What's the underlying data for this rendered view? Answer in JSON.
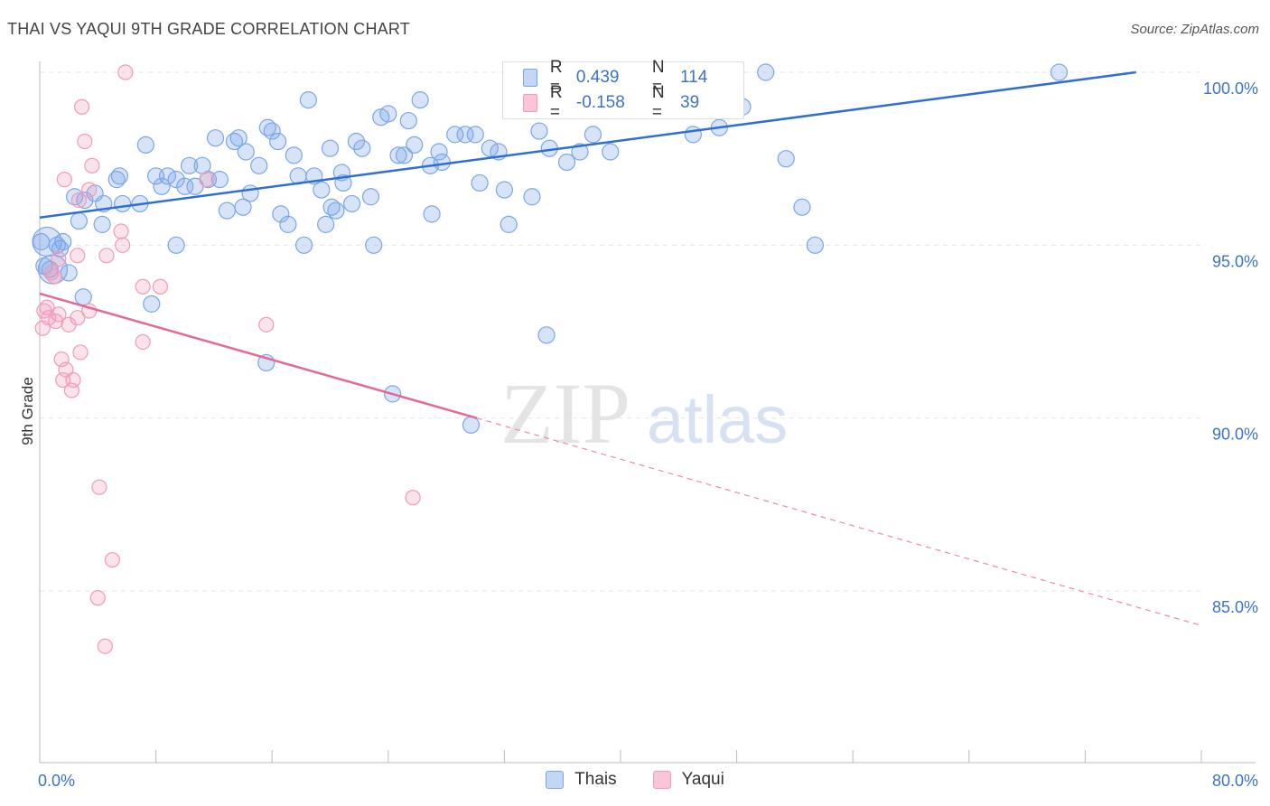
{
  "title": "THAI VS YAQUI 9TH GRADE CORRELATION CHART",
  "source": "Source: ZipAtlas.com",
  "watermark": {
    "zip": "ZIP",
    "atlas": "atlas"
  },
  "legend_top": {
    "rows": [
      {
        "r_label": "R =",
        "r_value": "0.439",
        "n_label": "N =",
        "n_value": "114",
        "color": "#7aa6e8"
      },
      {
        "r_label": "R =",
        "r_value": "-0.158",
        "n_label": "N =",
        "n_value": "39",
        "color": "#f29bb6"
      }
    ]
  },
  "bottom_legend": [
    {
      "label": "Thais",
      "color": "#7aa6e8"
    },
    {
      "label": "Yaqui",
      "color": "#f29bb6"
    }
  ],
  "chart_data": {
    "type": "scatter",
    "title": "THAI VS YAQUI 9TH GRADE CORRELATION CHART",
    "xlabel": "",
    "ylabel": "9th Grade",
    "xlim": [
      0,
      80
    ],
    "ylim": [
      80.5,
      100.8
    ],
    "x_tick_labels": [
      "0.0%",
      "80.0%"
    ],
    "y_ticks": [
      85,
      90,
      95,
      100
    ],
    "y_tick_labels": [
      "85.0%",
      "90.0%",
      "95.0%",
      "100.0%"
    ],
    "grid": true,
    "legend": "top-center",
    "series": [
      {
        "name": "Thais",
        "color": "#7aa6e8",
        "trend": {
          "x": [
            0,
            75.5
          ],
          "y": [
            95.8,
            100.0
          ],
          "dashed_to": null
        },
        "points": [
          [
            0.5,
            95.1
          ],
          [
            0.9,
            94.3
          ],
          [
            1.2,
            95.0
          ],
          [
            1.6,
            95.1
          ],
          [
            2.4,
            96.4
          ],
          [
            3.1,
            96.3
          ],
          [
            2.7,
            95.7
          ],
          [
            3.8,
            96.5
          ],
          [
            4.3,
            95.6
          ],
          [
            4.4,
            96.2
          ],
          [
            5.3,
            96.9
          ],
          [
            5.5,
            97.0
          ],
          [
            5.7,
            96.2
          ],
          [
            6.9,
            96.2
          ],
          [
            7.3,
            97.9
          ],
          [
            8.0,
            97.0
          ],
          [
            8.4,
            96.7
          ],
          [
            8.8,
            97.0
          ],
          [
            9.4,
            96.9
          ],
          [
            10.0,
            96.7
          ],
          [
            10.3,
            97.3
          ],
          [
            10.7,
            96.7
          ],
          [
            11.2,
            97.3
          ],
          [
            11.6,
            96.9
          ],
          [
            12.1,
            98.1
          ],
          [
            12.4,
            96.9
          ],
          [
            12.9,
            96.0
          ],
          [
            13.4,
            98.0
          ],
          [
            13.7,
            98.1
          ],
          [
            14.0,
            96.1
          ],
          [
            14.2,
            97.7
          ],
          [
            14.5,
            96.5
          ],
          [
            15.1,
            97.3
          ],
          [
            15.6,
            91.6
          ],
          [
            15.7,
            98.4
          ],
          [
            16.0,
            98.3
          ],
          [
            16.4,
            98.0
          ],
          [
            16.6,
            95.9
          ],
          [
            17.1,
            95.6
          ],
          [
            17.5,
            97.6
          ],
          [
            17.8,
            97.0
          ],
          [
            18.2,
            95.0
          ],
          [
            18.5,
            99.2
          ],
          [
            18.9,
            97.0
          ],
          [
            19.4,
            96.6
          ],
          [
            19.7,
            95.6
          ],
          [
            20.0,
            97.8
          ],
          [
            20.4,
            96.0
          ],
          [
            20.8,
            97.1
          ],
          [
            20.9,
            96.8
          ],
          [
            21.5,
            96.2
          ],
          [
            21.8,
            98.0
          ],
          [
            22.2,
            97.8
          ],
          [
            22.8,
            96.4
          ],
          [
            23.0,
            95.0
          ],
          [
            23.5,
            98.7
          ],
          [
            24.0,
            98.8
          ],
          [
            24.3,
            90.7
          ],
          [
            24.7,
            97.6
          ],
          [
            25.1,
            97.6
          ],
          [
            25.4,
            98.6
          ],
          [
            25.8,
            97.9
          ],
          [
            26.2,
            99.2
          ],
          [
            26.9,
            97.3
          ],
          [
            27.0,
            95.9
          ],
          [
            27.5,
            97.7
          ],
          [
            27.7,
            97.4
          ],
          [
            28.6,
            98.2
          ],
          [
            29.3,
            98.2
          ],
          [
            29.7,
            89.8
          ],
          [
            30.0,
            98.2
          ],
          [
            30.3,
            96.8
          ],
          [
            31.0,
            97.8
          ],
          [
            31.6,
            97.7
          ],
          [
            32.0,
            96.6
          ],
          [
            32.3,
            95.6
          ],
          [
            33.0,
            98.9
          ],
          [
            33.4,
            99.0
          ],
          [
            33.9,
            96.4
          ],
          [
            34.4,
            98.3
          ],
          [
            34.9,
            92.4
          ],
          [
            35.1,
            97.8
          ],
          [
            36.3,
            97.4
          ],
          [
            36.8,
            99.2
          ],
          [
            37.2,
            97.7
          ],
          [
            38.1,
            98.2
          ],
          [
            39.0,
            100.0
          ],
          [
            39.3,
            97.7
          ],
          [
            40.4,
            99.3
          ],
          [
            41.6,
            100.0
          ],
          [
            45.0,
            98.2
          ],
          [
            46.8,
            98.4
          ],
          [
            47.3,
            98.9
          ],
          [
            48.4,
            99.0
          ],
          [
            50.0,
            100.0
          ],
          [
            51.4,
            97.5
          ],
          [
            52.5,
            96.1
          ],
          [
            53.4,
            95.0
          ],
          [
            70.2,
            100.0
          ],
          [
            0.1,
            95.1
          ],
          [
            0.3,
            94.4
          ],
          [
            0.7,
            94.3
          ],
          [
            1.4,
            94.9
          ],
          [
            2.0,
            94.2
          ],
          [
            3.0,
            93.5
          ],
          [
            7.7,
            93.3
          ],
          [
            9.4,
            95.0
          ],
          [
            32.5,
            100.0
          ],
          [
            40.6,
            100.0
          ],
          [
            43.5,
            100.0
          ],
          [
            47.5,
            99.0
          ],
          [
            33.4,
            99.1
          ],
          [
            20.1,
            96.1
          ]
        ],
        "sizes": {
          "large_points": [
            [
              0.5,
              95.1
            ],
            [
              0.9,
              94.3
            ]
          ]
        }
      },
      {
        "name": "Yaqui",
        "color": "#f29bb6",
        "trend": {
          "x": [
            0,
            30.1
          ],
          "y": [
            93.6,
            90.0
          ],
          "dashed_to": [
            80,
            84.0
          ]
        },
        "points": [
          [
            0.2,
            92.6
          ],
          [
            0.3,
            93.1
          ],
          [
            0.6,
            92.9
          ],
          [
            0.8,
            94.2
          ],
          [
            1.1,
            92.8
          ],
          [
            1.3,
            93.0
          ],
          [
            1.3,
            94.6
          ],
          [
            1.5,
            91.7
          ],
          [
            1.6,
            91.1
          ],
          [
            1.7,
            96.9
          ],
          [
            1.8,
            91.4
          ],
          [
            2.2,
            90.8
          ],
          [
            2.3,
            91.1
          ],
          [
            2.6,
            94.7
          ],
          [
            2.6,
            92.9
          ],
          [
            2.7,
            96.3
          ],
          [
            2.8,
            91.9
          ],
          [
            2.9,
            99.0
          ],
          [
            3.1,
            98.0
          ],
          [
            3.4,
            96.6
          ],
          [
            3.4,
            93.1
          ],
          [
            3.6,
            97.3
          ],
          [
            4.0,
            84.8
          ],
          [
            4.1,
            88.0
          ],
          [
            4.5,
            83.4
          ],
          [
            4.6,
            94.7
          ],
          [
            5.0,
            85.9
          ],
          [
            5.6,
            95.4
          ],
          [
            5.7,
            95.0
          ],
          [
            5.9,
            100.0
          ],
          [
            7.1,
            92.2
          ],
          [
            7.1,
            93.8
          ],
          [
            8.3,
            93.8
          ],
          [
            11.5,
            96.9
          ],
          [
            15.6,
            92.7
          ],
          [
            25.7,
            87.7
          ],
          [
            0.5,
            93.2
          ],
          [
            1.0,
            94.1
          ],
          [
            2.0,
            92.7
          ]
        ]
      }
    ]
  }
}
